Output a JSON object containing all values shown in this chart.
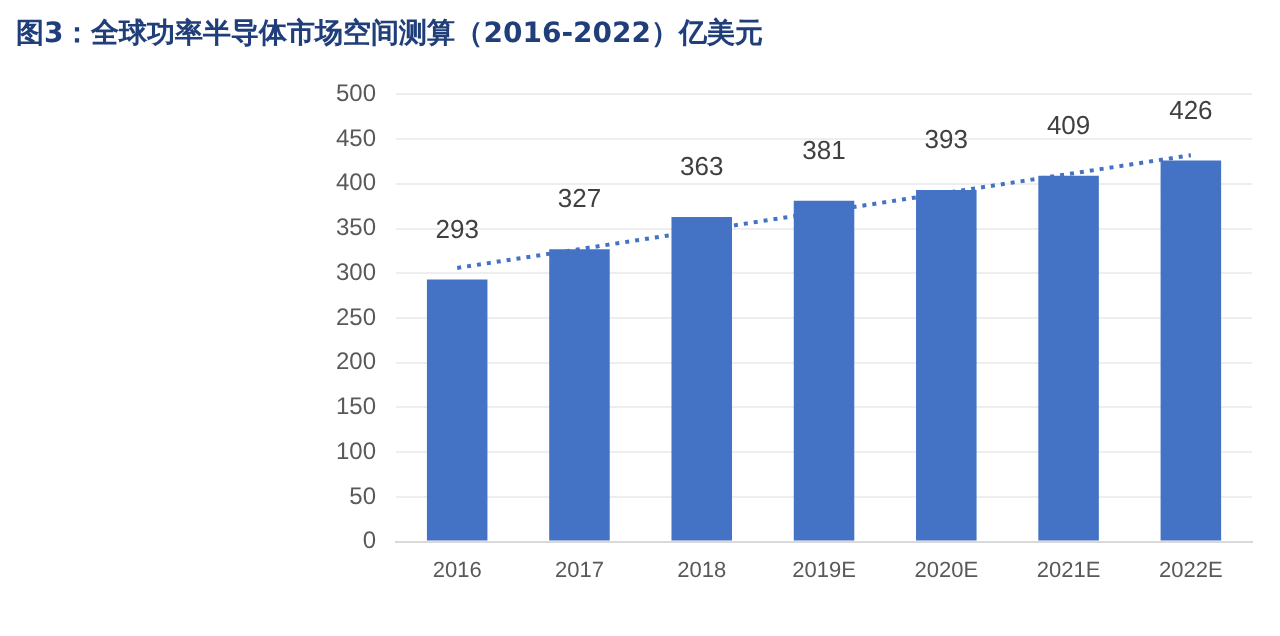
{
  "chart_data": {
    "type": "bar",
    "title": "图3：全球功率半导体市场空间测算（2016-2022）亿美元",
    "categories": [
      "2016",
      "2017",
      "2018",
      "2019E",
      "2020E",
      "2021E",
      "2022E"
    ],
    "series": [
      {
        "color": "#4472c4",
        "values": [
          293,
          327,
          363,
          381,
          393,
          409,
          426
        ],
        "value_labels": [
          "293",
          "327",
          "363",
          "381",
          "393",
          "409",
          "426"
        ]
      },
      {
        "type": "line",
        "color": "#4472c4",
        "values": [
          306,
          327,
          348,
          369,
          390,
          411,
          432
        ],
        "line_style": "dotted",
        "marker": "none"
      }
    ],
    "ylim": [
      0,
      500
    ],
    "yticks": [
      0,
      50,
      100,
      150,
      200,
      250,
      300,
      350,
      400,
      450,
      500
    ],
    "grid": "y"
  }
}
